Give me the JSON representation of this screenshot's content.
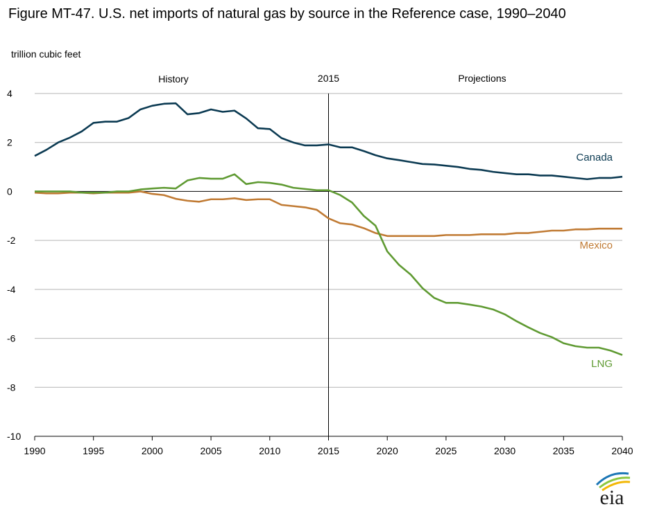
{
  "title": "Figure MT-47. U.S. net imports of natural gas by source in the Reference case, 1990–2040",
  "unit_label": "trillion cubic feet",
  "annotations": {
    "history": "History",
    "divider_year": "2015",
    "projections": "Projections"
  },
  "logo_text": "eia",
  "colors": {
    "Canada": "#0b3a52",
    "Mexico": "#c07a33",
    "LNG": "#5f9a32",
    "grid": "#b4b4b4",
    "axis": "#000000"
  },
  "chart_data": {
    "type": "line",
    "title": "Figure MT-47. U.S. net imports of natural gas by source in the Reference case, 1990–2040",
    "ylabel": "trillion cubic feet",
    "xlabel": "",
    "xlim": [
      1990,
      2040
    ],
    "ylim": [
      -10,
      4
    ],
    "yticks": [
      4,
      2,
      0,
      -2,
      -4,
      -6,
      -8,
      -10
    ],
    "xticks": [
      1990,
      1995,
      2000,
      2005,
      2010,
      2015,
      2020,
      2025,
      2030,
      2035,
      2040
    ],
    "grid": true,
    "x": [
      1990,
      1991,
      1992,
      1993,
      1994,
      1995,
      1996,
      1997,
      1998,
      1999,
      2000,
      2001,
      2002,
      2003,
      2004,
      2005,
      2006,
      2007,
      2008,
      2009,
      2010,
      2011,
      2012,
      2013,
      2014,
      2015,
      2016,
      2017,
      2018,
      2019,
      2020,
      2021,
      2022,
      2023,
      2024,
      2025,
      2026,
      2027,
      2028,
      2029,
      2030,
      2031,
      2032,
      2033,
      2034,
      2035,
      2036,
      2037,
      2038,
      2039,
      2040
    ],
    "series": [
      {
        "name": "Canada",
        "values": [
          1.45,
          1.7,
          2.0,
          2.2,
          2.45,
          2.8,
          2.85,
          2.85,
          3.0,
          3.35,
          3.5,
          3.58,
          3.6,
          3.15,
          3.2,
          3.35,
          3.25,
          3.3,
          2.98,
          2.58,
          2.55,
          2.18,
          2.0,
          1.88,
          1.88,
          1.92,
          1.8,
          1.8,
          1.65,
          1.48,
          1.35,
          1.28,
          1.2,
          1.12,
          1.1,
          1.05,
          1.0,
          0.92,
          0.88,
          0.8,
          0.75,
          0.7,
          0.7,
          0.65,
          0.65,
          0.6,
          0.55,
          0.5,
          0.55,
          0.55,
          0.6
        ]
      },
      {
        "name": "Mexico",
        "values": [
          -0.05,
          -0.08,
          -0.08,
          -0.05,
          -0.05,
          -0.08,
          -0.05,
          -0.05,
          -0.05,
          0.0,
          -0.1,
          -0.15,
          -0.3,
          -0.38,
          -0.42,
          -0.32,
          -0.32,
          -0.28,
          -0.35,
          -0.32,
          -0.32,
          -0.55,
          -0.6,
          -0.65,
          -0.75,
          -1.1,
          -1.3,
          -1.35,
          -1.5,
          -1.7,
          -1.82,
          -1.82,
          -1.82,
          -1.82,
          -1.82,
          -1.78,
          -1.78,
          -1.78,
          -1.75,
          -1.75,
          -1.75,
          -1.7,
          -1.7,
          -1.65,
          -1.6,
          -1.6,
          -1.55,
          -1.55,
          -1.52,
          -1.52,
          -1.52
        ]
      },
      {
        "name": "LNG",
        "values": [
          0.0,
          0.0,
          0.0,
          0.0,
          -0.05,
          -0.05,
          -0.05,
          0.0,
          0.0,
          0.08,
          0.12,
          0.15,
          0.12,
          0.45,
          0.55,
          0.52,
          0.52,
          0.7,
          0.3,
          0.38,
          0.35,
          0.28,
          0.15,
          0.1,
          0.05,
          0.05,
          -0.15,
          -0.45,
          -1.0,
          -1.4,
          -2.45,
          -3.0,
          -3.4,
          -3.95,
          -4.35,
          -4.55,
          -4.55,
          -4.62,
          -4.7,
          -4.82,
          -5.02,
          -5.3,
          -5.55,
          -5.78,
          -5.95,
          -6.2,
          -6.32,
          -6.38,
          -6.38,
          -6.5,
          -6.68
        ]
      }
    ]
  }
}
